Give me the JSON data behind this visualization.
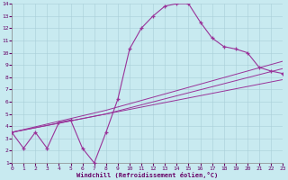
{
  "xlabel": "Windchill (Refroidissement éolien,°C)",
  "bg_color": "#c8eaf0",
  "line_color": "#993399",
  "xmin": 0,
  "xmax": 23,
  "ymin": 1,
  "ymax": 14,
  "curve1_x": [
    0,
    1,
    2,
    3,
    4,
    5,
    6,
    7,
    8,
    9,
    10,
    11,
    12,
    13,
    14,
    15,
    16,
    17,
    18,
    19,
    20,
    21,
    22,
    23
  ],
  "curve1_y": [
    3.5,
    2.2,
    3.5,
    2.2,
    4.3,
    4.5,
    2.2,
    1.0,
    3.5,
    6.2,
    10.3,
    12.0,
    13.0,
    13.8,
    14.0,
    14.0,
    12.5,
    11.2,
    10.5,
    10.3,
    10.0,
    8.8,
    8.5,
    8.3
  ],
  "curve2_x": [
    0,
    8,
    23
  ],
  "curve2_y": [
    3.5,
    5.3,
    9.3
  ],
  "curve3_x": [
    0,
    8,
    23
  ],
  "curve3_y": [
    3.5,
    5.0,
    8.7
  ],
  "curve4_x": [
    0,
    23
  ],
  "curve4_y": [
    3.5,
    7.8
  ],
  "yticks": [
    1,
    2,
    3,
    4,
    5,
    6,
    7,
    8,
    9,
    10,
    11,
    12,
    13,
    14
  ],
  "xticks": [
    0,
    1,
    2,
    3,
    4,
    5,
    6,
    7,
    8,
    9,
    10,
    11,
    12,
    13,
    14,
    15,
    16,
    17,
    18,
    19,
    20,
    21,
    22,
    23
  ],
  "grid_color": "#a8cfd8",
  "tick_color": "#660066",
  "xlabel_color": "#660066"
}
